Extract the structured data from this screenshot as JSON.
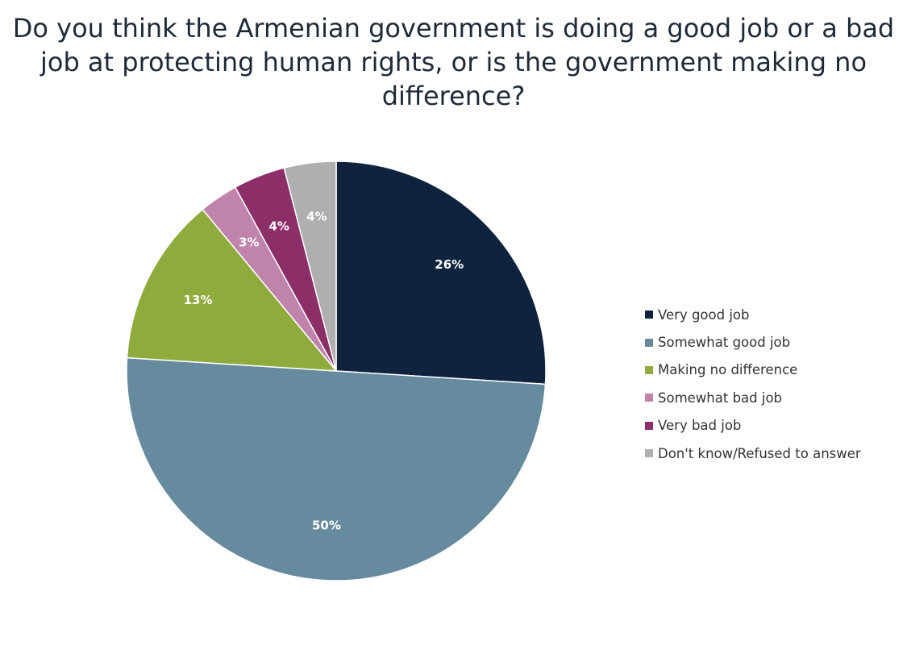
{
  "chart_data": {
    "type": "pie",
    "title": "Do you think the Armenian government is doing a good job or a bad job at protecting human rights, or is the government making no difference?",
    "series": [
      {
        "name": "Very good job",
        "value": 26,
        "label": "26%",
        "color": "#0f233e",
        "label_color": "#ffffff"
      },
      {
        "name": "Somewhat good job",
        "value": 50,
        "label": "50%",
        "color": "#678b9e",
        "label_color": "#ffffff"
      },
      {
        "name": "Making no difference",
        "value": 13,
        "label": "13%",
        "color": "#8fab3e",
        "label_color": "#ffffff"
      },
      {
        "name": "Somewhat bad job",
        "value": 3,
        "label": "3%",
        "color": "#c084ac",
        "label_color": "#ffffff"
      },
      {
        "name": "Very bad job",
        "value": 4,
        "label": "4%",
        "color": "#8c2e68",
        "label_color": "#ffffff"
      },
      {
        "name": "Don't know/Refused to answer",
        "value": 4,
        "label": "4%",
        "color": "#afafb1",
        "label_color": "#ffffff"
      }
    ],
    "legend_position": "right",
    "start_angle": "12 o'clock, clockwise"
  }
}
